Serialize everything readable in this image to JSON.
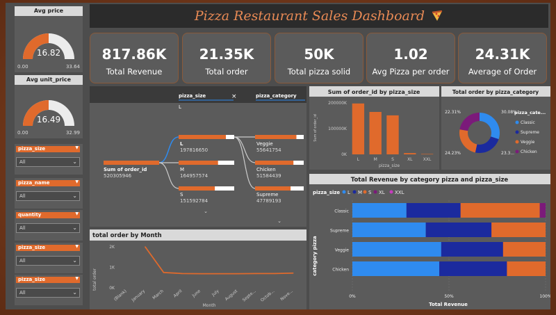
{
  "dashboard": {
    "title": "Pizza Restaurant Sales Dashboard",
    "title_icon": "pizza-icon"
  },
  "gauges": [
    {
      "title": "Avg price",
      "value": "16.82",
      "min": "0.00",
      "max": "33.64",
      "fraction": 0.5
    },
    {
      "title": "Avg unit_price",
      "value": "16.49",
      "min": "0.00",
      "max": "32.99",
      "fraction": 0.5
    }
  ],
  "slicers": [
    {
      "label": "pizza_size",
      "value": "All"
    },
    {
      "label": "pizza_name",
      "value": "All"
    },
    {
      "label": "quantity",
      "value": "All"
    },
    {
      "label": "pizza_size",
      "value": "All"
    },
    {
      "label": "pizza_size",
      "value": "All"
    }
  ],
  "kpis": [
    {
      "value": "817.86K",
      "label": "Total Revenue"
    },
    {
      "value": "21.35K",
      "label": "Total order"
    },
    {
      "value": "50K",
      "label": "Total pizza solid"
    },
    {
      "value": "1.02",
      "label": "Avg Pizza per order"
    },
    {
      "value": "24.31K",
      "label": "Average of Order"
    }
  ],
  "tree": {
    "col1": "pizza_size",
    "col1_filter": "L",
    "col2": "pizza_category",
    "root_label": "Sum of order_id",
    "root_value": "520305946",
    "size_nodes": [
      {
        "label": "L",
        "value": "197816650"
      },
      {
        "label": "M",
        "value": "164957574"
      },
      {
        "label": "S",
        "value": "151592784"
      }
    ],
    "cat_nodes": [
      {
        "label": "Veggie",
        "value": "55641754"
      },
      {
        "label": "Chicken",
        "value": "51584439"
      },
      {
        "label": "Supreme",
        "value": "47789193"
      }
    ]
  },
  "colors": {
    "orange": "#e06a2c",
    "blue": "#2f8bef",
    "navy": "#1b2a9e",
    "purple": "#7b1a7a",
    "panel": "#5b5b5b",
    "bg": "#4d4d4d"
  },
  "chart_data": [
    {
      "type": "bar",
      "title": "Sum of order_id by pizza_size",
      "categories": [
        "L",
        "M",
        "S",
        "XL",
        "XXL"
      ],
      "values": [
        197816650,
        164957574,
        151592784,
        5000000,
        1500000
      ],
      "ylabel": "Sum of order_id",
      "xlabel": "pizza_size",
      "ytick_labels": [
        "0K",
        "100000K",
        "200000K"
      ],
      "yticks": [
        0,
        100000000,
        200000000
      ],
      "ylim": [
        0,
        200000000
      ]
    },
    {
      "type": "pie",
      "title": "Total order by pizza_category",
      "legend_title": "pizza_cate...",
      "categories": [
        "Classic",
        "Supreme",
        "Veggie",
        "Chicken"
      ],
      "values": [
        30.08,
        23.3,
        24.23,
        22.31
      ],
      "slice_labels": [
        "30.08%",
        "23.3...",
        "24.23%",
        "22.31%"
      ],
      "colors": [
        "#2f8bef",
        "#1b2a9e",
        "#e06a2c",
        "#7b1a7a"
      ]
    },
    {
      "type": "line",
      "title": "total order by Month",
      "xlabel": "Month",
      "ylabel": "total order",
      "categories": [
        "(Blank)",
        "January",
        "March",
        "April",
        "June",
        "July",
        "August",
        "Septe...",
        "Octob...",
        "Nove..."
      ],
      "values": [
        null,
        2000,
        750,
        700,
        690,
        690,
        690,
        700,
        700,
        720
      ],
      "ytick_labels": [
        "0K",
        "1K",
        "2K"
      ],
      "yticks": [
        0,
        1000,
        2000
      ],
      "ylim": [
        0,
        2000
      ]
    },
    {
      "type": "bar",
      "orientation": "horizontal",
      "stacked": "100%",
      "title": "Total Revenue by category pizza and pizza_size",
      "legend_title": "pizza_size",
      "ylabel": "category pizza",
      "xlabel": "Total Revenue",
      "categories": [
        "Classic",
        "Supreme",
        "Veggie",
        "Chicken"
      ],
      "series": [
        {
          "name": "L",
          "values": [
            28,
            38,
            46,
            45
          ]
        },
        {
          "name": "M",
          "values": [
            28,
            34,
            32,
            35
          ]
        },
        {
          "name": "S",
          "values": [
            41,
            28,
            22,
            20
          ]
        },
        {
          "name": "XL",
          "values": [
            3,
            0,
            0,
            0
          ]
        },
        {
          "name": "XXL",
          "values": [
            0,
            0,
            0,
            0
          ]
        }
      ],
      "series_colors": [
        "#2f8bef",
        "#1b2a9e",
        "#e06a2c",
        "#7b1a7a",
        "#c83bbf"
      ],
      "xtick_labels": [
        "0%",
        "50%",
        "100%"
      ],
      "xticks": [
        0,
        50,
        100
      ]
    }
  ]
}
